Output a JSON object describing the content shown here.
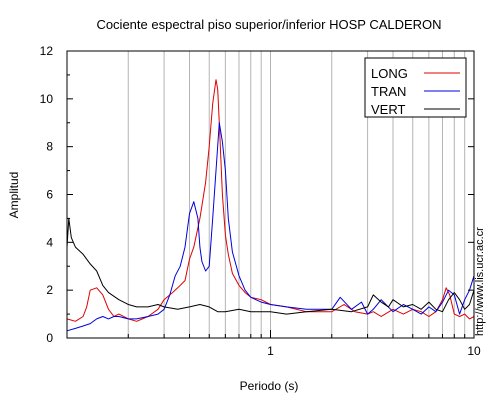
{
  "chart_data": {
    "type": "line",
    "title": "Cociente espectral piso superior/inferior  HOSP CALDERON",
    "xlabel": "Periodo (s)",
    "ylabel": "Amplitud",
    "x_scale": "log",
    "xlim": [
      0.1,
      10
    ],
    "ylim": [
      0,
      12
    ],
    "x_tick_labels": [
      "1",
      "10"
    ],
    "y_ticks": [
      0,
      2,
      4,
      6,
      8,
      10,
      12
    ],
    "grid": "vertical log grid",
    "legend_position": "top-right",
    "series": [
      {
        "name": "LONG",
        "color": "#e00000",
        "x": [
          0.1,
          0.11,
          0.12,
          0.125,
          0.13,
          0.14,
          0.15,
          0.16,
          0.17,
          0.18,
          0.2,
          0.22,
          0.25,
          0.28,
          0.3,
          0.33,
          0.35,
          0.38,
          0.4,
          0.42,
          0.45,
          0.48,
          0.5,
          0.52,
          0.54,
          0.55,
          0.56,
          0.58,
          0.6,
          0.62,
          0.65,
          0.7,
          0.75,
          0.8,
          0.9,
          1.0,
          1.2,
          1.5,
          2.0,
          2.3,
          2.6,
          3.0,
          3.2,
          3.5,
          4.0,
          4.5,
          5.0,
          5.5,
          6.0,
          6.5,
          7.0,
          7.3,
          7.6,
          8.0,
          8.5,
          9.0,
          9.5,
          10.0
        ],
        "y": [
          0.8,
          0.7,
          0.9,
          1.3,
          2.0,
          2.1,
          1.8,
          1.2,
          0.9,
          1.0,
          0.8,
          0.7,
          0.9,
          1.2,
          1.6,
          1.9,
          2.1,
          2.4,
          3.3,
          3.8,
          5.0,
          6.5,
          8.0,
          9.8,
          10.8,
          10.4,
          9.0,
          6.0,
          4.3,
          3.5,
          2.7,
          2.2,
          1.9,
          1.7,
          1.6,
          1.4,
          1.3,
          1.1,
          1.1,
          1.4,
          1.1,
          1.0,
          1.1,
          0.9,
          1.2,
          1.0,
          1.2,
          1.1,
          0.9,
          1.1,
          1.6,
          2.1,
          1.8,
          1.0,
          0.9,
          1.0,
          0.8,
          0.9
        ]
      },
      {
        "name": "TRAN",
        "color": "#0000e0",
        "x": [
          0.1,
          0.11,
          0.12,
          0.13,
          0.14,
          0.15,
          0.16,
          0.17,
          0.18,
          0.2,
          0.22,
          0.25,
          0.28,
          0.3,
          0.32,
          0.34,
          0.36,
          0.38,
          0.4,
          0.42,
          0.44,
          0.45,
          0.46,
          0.48,
          0.5,
          0.52,
          0.54,
          0.56,
          0.58,
          0.6,
          0.62,
          0.65,
          0.7,
          0.75,
          0.8,
          0.9,
          1.0,
          1.2,
          1.5,
          2.0,
          2.2,
          2.5,
          2.8,
          3.0,
          3.2,
          3.5,
          4.0,
          4.5,
          5.0,
          5.5,
          6.0,
          6.5,
          7.0,
          7.5,
          8.0,
          8.5,
          9.0,
          9.5,
          10.0
        ],
        "y": [
          0.3,
          0.4,
          0.5,
          0.6,
          0.8,
          0.9,
          0.8,
          0.9,
          0.9,
          0.8,
          0.8,
          0.9,
          1.0,
          1.2,
          1.8,
          2.6,
          3.0,
          3.8,
          5.2,
          5.7,
          5.0,
          3.8,
          3.2,
          2.8,
          3.0,
          5.0,
          7.0,
          9.0,
          8.2,
          7.0,
          5.0,
          3.6,
          2.6,
          2.0,
          1.7,
          1.5,
          1.4,
          1.3,
          1.2,
          1.2,
          1.7,
          1.2,
          1.5,
          1.0,
          1.2,
          1.6,
          1.1,
          1.4,
          1.2,
          1.0,
          1.3,
          1.1,
          1.5,
          2.0,
          1.8,
          1.0,
          1.6,
          2.0,
          2.6
        ]
      },
      {
        "name": "VERT",
        "color": "#000000",
        "x": [
          0.1,
          0.102,
          0.105,
          0.11,
          0.12,
          0.13,
          0.14,
          0.15,
          0.16,
          0.18,
          0.2,
          0.22,
          0.25,
          0.28,
          0.3,
          0.35,
          0.4,
          0.45,
          0.5,
          0.55,
          0.6,
          0.7,
          0.8,
          0.9,
          1.0,
          1.2,
          1.5,
          2.0,
          2.5,
          3.0,
          3.2,
          3.5,
          3.8,
          4.0,
          4.5,
          5.0,
          5.5,
          6.0,
          6.5,
          7.0,
          7.5,
          8.0,
          8.5,
          9.0,
          9.5,
          10.0
        ],
        "y": [
          3.8,
          5.0,
          4.2,
          3.8,
          3.5,
          3.1,
          2.8,
          2.2,
          1.9,
          1.6,
          1.4,
          1.3,
          1.3,
          1.4,
          1.3,
          1.2,
          1.3,
          1.4,
          1.3,
          1.1,
          1.1,
          1.2,
          1.1,
          1.1,
          1.1,
          1.0,
          1.1,
          1.2,
          1.1,
          1.3,
          1.8,
          1.5,
          1.3,
          1.6,
          1.3,
          1.4,
          1.2,
          1.5,
          1.2,
          1.1,
          1.6,
          1.9,
          1.6,
          1.2,
          1.4,
          2.0
        ]
      }
    ]
  },
  "side_text": "http://www.lis.ucr.ac.cr"
}
